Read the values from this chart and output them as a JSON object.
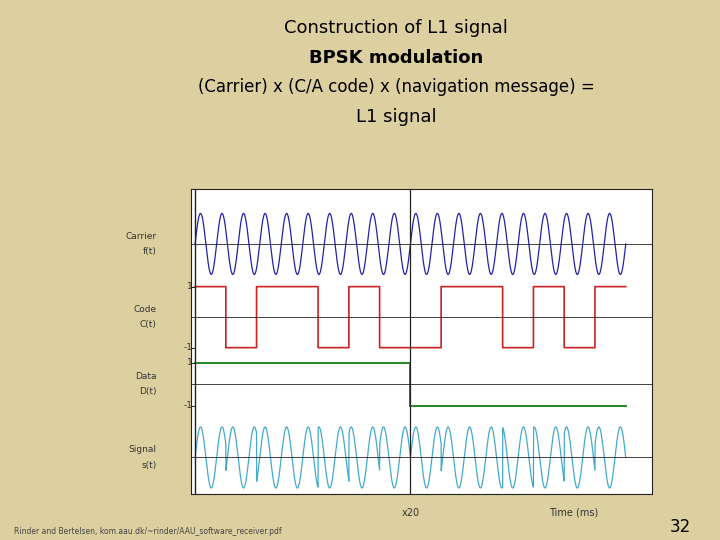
{
  "title_line1": "Construction of L1 signal",
  "title_line2": "BPSK modulation",
  "title_line3": "(Carrier) x (C/A code) x (navigation message) =",
  "title_line4": "L1 signal",
  "bg_color": "#DDD0A0",
  "plot_bg": "#FFFFFF",
  "carrier_color": "#2222AA",
  "code_color": "#CC2222",
  "data_color": "#228822",
  "signal_color": "#44AACC",
  "axis_color": "#222222",
  "label_color": "#333333",
  "carrier_freq": 20,
  "code_pattern": [
    1,
    -1,
    1,
    1,
    -1,
    1,
    -1,
    -1,
    1,
    1,
    -1,
    1,
    -1,
    1
  ],
  "t_total": 1.0,
  "mid_point": 0.5,
  "font_size_title1": 13,
  "font_size_title2": 13,
  "font_size_title3": 12,
  "font_size_title4": 13,
  "footer_text": "Rinder and Bertelsen, kom.aau.dk/~rinder/AAU_software_receiver.pdf",
  "page_num": "32"
}
